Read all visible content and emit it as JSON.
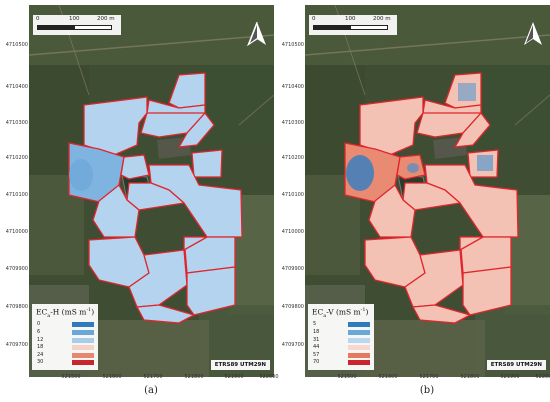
{
  "panels": [
    {
      "id": "a",
      "scale": {
        "label_0": "0",
        "label_1": "100",
        "label_2": "200 m"
      },
      "y_ticks": [
        "4710500",
        "4710400",
        "4710300",
        "4710200",
        "4710100",
        "4710000",
        "4709900",
        "4709800",
        "4709700"
      ],
      "x_ticks": [
        "521500",
        "521600",
        "521700",
        "521800",
        "521900",
        "522000"
      ],
      "legend": {
        "title_main": "EC",
        "title_sub": "a",
        "title_rest": "-H (mS m",
        "title_sup": "-1",
        "title_end": ")",
        "rows": [
          {
            "value": "0",
            "color": "#2f7bbd"
          },
          {
            "value": "6",
            "color": "#6aa6d6"
          },
          {
            "value": "12",
            "color": "#a9cde9"
          },
          {
            "value": "18",
            "color": "#f3d3c8"
          },
          {
            "value": "24",
            "color": "#e88770"
          },
          {
            "value": "30",
            "color": "#c8262a"
          }
        ]
      },
      "crs": "ETRS89 UTM29N",
      "caption": "(a)",
      "fill_color": "#b4d3ef",
      "fill_color_dark": "#7fb3e0",
      "boundary_color": "#e0262b"
    },
    {
      "id": "b",
      "scale": {
        "label_0": "0",
        "label_1": "100",
        "label_2": "200 m"
      },
      "y_ticks": [
        "4710500",
        "4710400",
        "4710300",
        "4710200",
        "4710100",
        "4710000",
        "4709900",
        "4709800",
        "4709700"
      ],
      "x_ticks": [
        "521500",
        "521600",
        "521700",
        "521800",
        "521900",
        "522000"
      ],
      "legend": {
        "title_main": "EC",
        "title_sub": "a",
        "title_rest": "-V (mS m",
        "title_sup": "-1",
        "title_end": ")",
        "rows": [
          {
            "value": "5",
            "color": "#2f7bbd"
          },
          {
            "value": "18",
            "color": "#6aa6d6"
          },
          {
            "value": "31",
            "color": "#b9d7ee"
          },
          {
            "value": "44",
            "color": "#f6d8cf"
          },
          {
            "value": "57",
            "color": "#e5795f"
          },
          {
            "value": "70",
            "color": "#c8262a"
          }
        ]
      },
      "crs": "ETRS89 UTM29N",
      "caption": "(b)",
      "fill_color": "#f4c2b5",
      "fill_color_dark": "#e98a73",
      "boundary_color": "#e0262b"
    }
  ]
}
